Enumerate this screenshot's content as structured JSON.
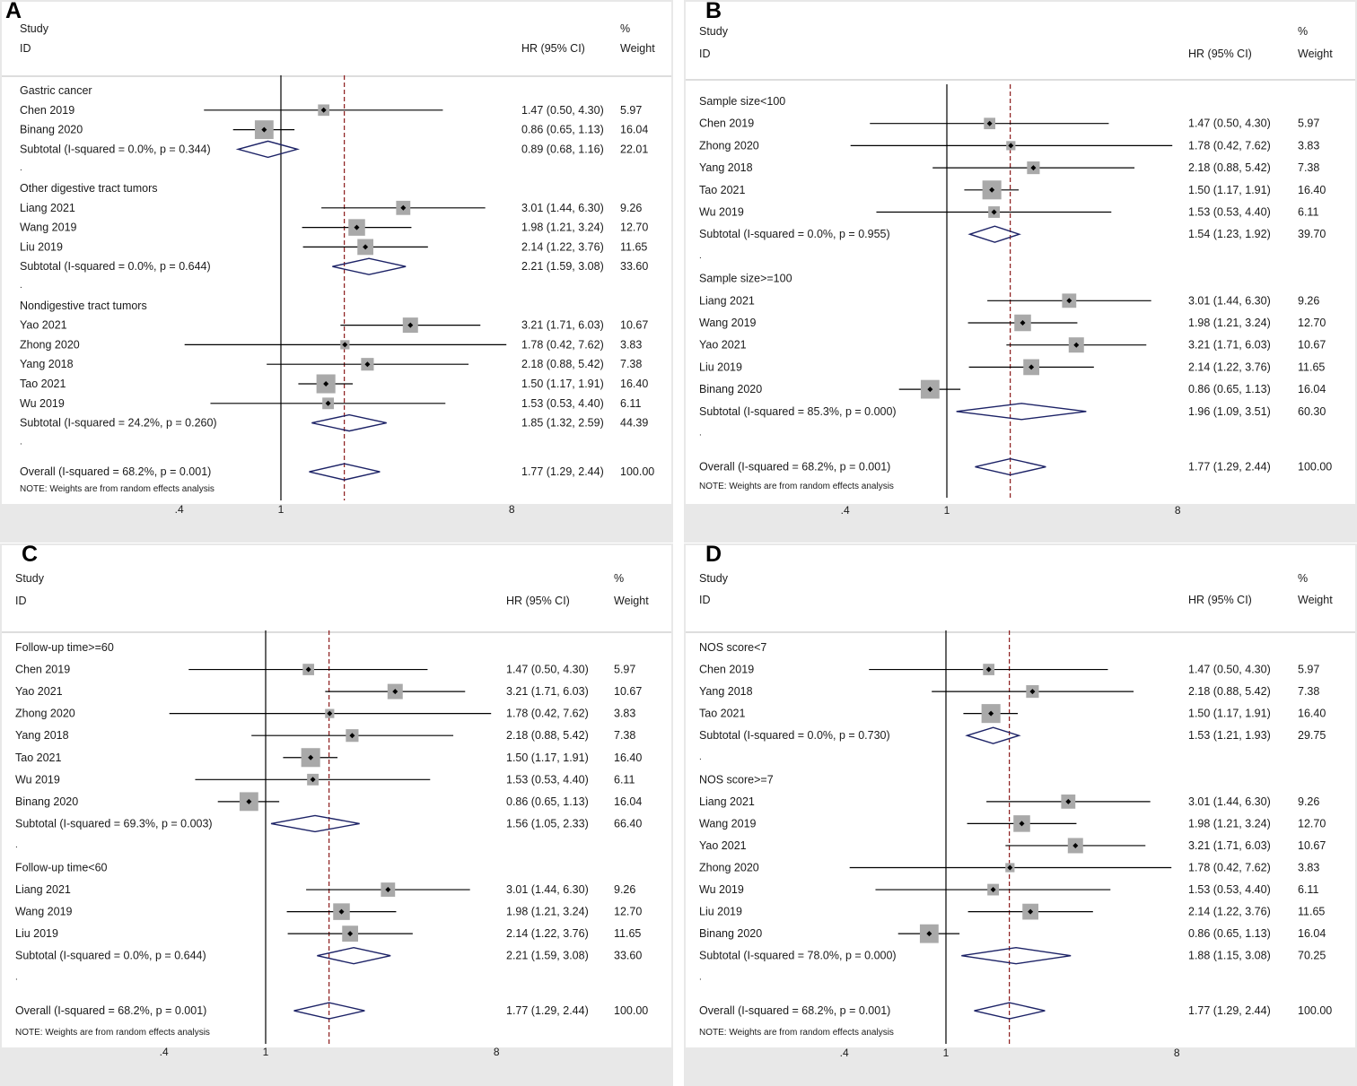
{
  "chart_data": [
    {
      "type": "forest",
      "panel_label": "A",
      "headers": {
        "study": "Study",
        "id": "ID",
        "ci": "HR (95% CI)",
        "pct": "%",
        "weight": "Weight"
      },
      "axis": {
        "scale": "log",
        "ticks": [
          0.4,
          1,
          8
        ],
        "tick_labels": [
          ".4",
          "1",
          "8"
        ],
        "null_line": 1,
        "overall_line": 1.77
      },
      "note": "NOTE: Weights are from random effects analysis",
      "rows": [
        {
          "kind": "group",
          "label": "Gastric cancer"
        },
        {
          "kind": "study",
          "label": "Chen 2019",
          "hr": 1.47,
          "lo": 0.5,
          "hi": 4.3,
          "ci_text": "1.47 (0.50, 4.30)",
          "weight": "5.97"
        },
        {
          "kind": "study",
          "label": "Binang 2020",
          "hr": 0.86,
          "lo": 0.65,
          "hi": 1.13,
          "ci_text": "0.86 (0.65, 1.13)",
          "weight": "16.04"
        },
        {
          "kind": "subtotal",
          "label": "Subtotal  (I-squared = 0.0%, p = 0.344)",
          "hr": 0.89,
          "lo": 0.68,
          "hi": 1.16,
          "ci_text": "0.89 (0.68, 1.16)",
          "weight": "22.01"
        },
        {
          "kind": "dot",
          "label": "."
        },
        {
          "kind": "group",
          "label": "Other digestive tract tumors"
        },
        {
          "kind": "study",
          "label": "Liang 2021",
          "hr": 3.01,
          "lo": 1.44,
          "hi": 6.3,
          "ci_text": "3.01 (1.44, 6.30)",
          "weight": "9.26"
        },
        {
          "kind": "study",
          "label": "Wang 2019",
          "hr": 1.98,
          "lo": 1.21,
          "hi": 3.24,
          "ci_text": "1.98 (1.21, 3.24)",
          "weight": "12.70"
        },
        {
          "kind": "study",
          "label": "Liu 2019",
          "hr": 2.14,
          "lo": 1.22,
          "hi": 3.76,
          "ci_text": "2.14 (1.22, 3.76)",
          "weight": "11.65"
        },
        {
          "kind": "subtotal",
          "label": "Subtotal  (I-squared = 0.0%, p = 0.644)",
          "hr": 2.21,
          "lo": 1.59,
          "hi": 3.08,
          "ci_text": "2.21 (1.59, 3.08)",
          "weight": "33.60"
        },
        {
          "kind": "dot",
          "label": "."
        },
        {
          "kind": "group",
          "label": "Nondigestive tract tumors"
        },
        {
          "kind": "study",
          "label": "Yao 2021",
          "hr": 3.21,
          "lo": 1.71,
          "hi": 6.03,
          "ci_text": "3.21 (1.71, 6.03)",
          "weight": "10.67"
        },
        {
          "kind": "study",
          "label": "Zhong 2020",
          "hr": 1.78,
          "lo": 0.42,
          "hi": 7.62,
          "ci_text": "1.78 (0.42, 7.62)",
          "weight": "3.83"
        },
        {
          "kind": "study",
          "label": "Yang 2018",
          "hr": 2.18,
          "lo": 0.88,
          "hi": 5.42,
          "ci_text": "2.18 (0.88, 5.42)",
          "weight": "7.38"
        },
        {
          "kind": "study",
          "label": "Tao 2021",
          "hr": 1.5,
          "lo": 1.17,
          "hi": 1.91,
          "ci_text": "1.50 (1.17, 1.91)",
          "weight": "16.40"
        },
        {
          "kind": "study",
          "label": "Wu 2019",
          "hr": 1.53,
          "lo": 0.53,
          "hi": 4.4,
          "ci_text": "1.53 (0.53, 4.40)",
          "weight": "6.11"
        },
        {
          "kind": "subtotal",
          "label": "Subtotal  (I-squared = 24.2%, p = 0.260)",
          "hr": 1.85,
          "lo": 1.32,
          "hi": 2.59,
          "ci_text": "1.85 (1.32, 2.59)",
          "weight": "44.39"
        },
        {
          "kind": "dot",
          "label": "."
        },
        {
          "kind": "overall",
          "label": "Overall  (I-squared = 68.2%, p = 0.001)",
          "hr": 1.77,
          "lo": 1.29,
          "hi": 2.44,
          "ci_text": "1.77 (1.29, 2.44)",
          "weight": "100.00"
        }
      ]
    },
    {
      "type": "forest",
      "panel_label": "B",
      "headers": {
        "study": "Study",
        "id": "ID",
        "ci": "HR (95% CI)",
        "pct": "%",
        "weight": "Weight"
      },
      "axis": {
        "scale": "log",
        "ticks": [
          0.4,
          1,
          8
        ],
        "tick_labels": [
          ".4",
          "1",
          "8"
        ],
        "null_line": 1,
        "overall_line": 1.77
      },
      "note": "NOTE: Weights are from random effects analysis",
      "rows": [
        {
          "kind": "group",
          "label": "Sample size<100"
        },
        {
          "kind": "study",
          "label": "Chen 2019",
          "hr": 1.47,
          "lo": 0.5,
          "hi": 4.3,
          "ci_text": "1.47 (0.50, 4.30)",
          "weight": "5.97"
        },
        {
          "kind": "study",
          "label": "Zhong 2020",
          "hr": 1.78,
          "lo": 0.42,
          "hi": 7.62,
          "ci_text": "1.78 (0.42, 7.62)",
          "weight": "3.83"
        },
        {
          "kind": "study",
          "label": "Yang 2018",
          "hr": 2.18,
          "lo": 0.88,
          "hi": 5.42,
          "ci_text": "2.18 (0.88, 5.42)",
          "weight": "7.38"
        },
        {
          "kind": "study",
          "label": "Tao 2021",
          "hr": 1.5,
          "lo": 1.17,
          "hi": 1.91,
          "ci_text": "1.50 (1.17, 1.91)",
          "weight": "16.40"
        },
        {
          "kind": "study",
          "label": "Wu 2019",
          "hr": 1.53,
          "lo": 0.53,
          "hi": 4.4,
          "ci_text": "1.53 (0.53, 4.40)",
          "weight": "6.11"
        },
        {
          "kind": "subtotal",
          "label": "Subtotal  (I-squared = 0.0%, p = 0.955)",
          "hr": 1.54,
          "lo": 1.23,
          "hi": 1.92,
          "ci_text": "1.54 (1.23, 1.92)",
          "weight": "39.70"
        },
        {
          "kind": "dot",
          "label": "."
        },
        {
          "kind": "group",
          "label": "Sample size>=100"
        },
        {
          "kind": "study",
          "label": "Liang 2021",
          "hr": 3.01,
          "lo": 1.44,
          "hi": 6.3,
          "ci_text": "3.01 (1.44, 6.30)",
          "weight": "9.26"
        },
        {
          "kind": "study",
          "label": "Wang 2019",
          "hr": 1.98,
          "lo": 1.21,
          "hi": 3.24,
          "ci_text": "1.98 (1.21, 3.24)",
          "weight": "12.70"
        },
        {
          "kind": "study",
          "label": "Yao 2021",
          "hr": 3.21,
          "lo": 1.71,
          "hi": 6.03,
          "ci_text": "3.21 (1.71, 6.03)",
          "weight": "10.67"
        },
        {
          "kind": "study",
          "label": "Liu 2019",
          "hr": 2.14,
          "lo": 1.22,
          "hi": 3.76,
          "ci_text": "2.14 (1.22, 3.76)",
          "weight": "11.65"
        },
        {
          "kind": "study",
          "label": "Binang 2020",
          "hr": 0.86,
          "lo": 0.65,
          "hi": 1.13,
          "ci_text": "0.86 (0.65, 1.13)",
          "weight": "16.04"
        },
        {
          "kind": "subtotal",
          "label": "Subtotal  (I-squared = 85.3%, p = 0.000)",
          "hr": 1.96,
          "lo": 1.09,
          "hi": 3.51,
          "ci_text": "1.96 (1.09, 3.51)",
          "weight": "60.30"
        },
        {
          "kind": "dot",
          "label": "."
        },
        {
          "kind": "overall",
          "label": "Overall  (I-squared = 68.2%, p = 0.001)",
          "hr": 1.77,
          "lo": 1.29,
          "hi": 2.44,
          "ci_text": "1.77 (1.29, 2.44)",
          "weight": "100.00"
        }
      ]
    },
    {
      "type": "forest",
      "panel_label": "C",
      "headers": {
        "study": "Study",
        "id": "ID",
        "ci": "HR (95% CI)",
        "pct": "%",
        "weight": "Weight"
      },
      "axis": {
        "scale": "log",
        "ticks": [
          0.4,
          1,
          8
        ],
        "tick_labels": [
          ".4",
          "1",
          "8"
        ],
        "null_line": 1,
        "overall_line": 1.77
      },
      "note": "NOTE: Weights are from random effects analysis",
      "rows": [
        {
          "kind": "group",
          "label": "Follow-up time>=60"
        },
        {
          "kind": "study",
          "label": "Chen 2019",
          "hr": 1.47,
          "lo": 0.5,
          "hi": 4.3,
          "ci_text": "1.47 (0.50, 4.30)",
          "weight": "5.97"
        },
        {
          "kind": "study",
          "label": "Yao 2021",
          "hr": 3.21,
          "lo": 1.71,
          "hi": 6.03,
          "ci_text": "3.21 (1.71, 6.03)",
          "weight": "10.67"
        },
        {
          "kind": "study",
          "label": "Zhong 2020",
          "hr": 1.78,
          "lo": 0.42,
          "hi": 7.62,
          "ci_text": "1.78 (0.42, 7.62)",
          "weight": "3.83"
        },
        {
          "kind": "study",
          "label": "Yang 2018",
          "hr": 2.18,
          "lo": 0.88,
          "hi": 5.42,
          "ci_text": "2.18 (0.88, 5.42)",
          "weight": "7.38"
        },
        {
          "kind": "study",
          "label": "Tao 2021",
          "hr": 1.5,
          "lo": 1.17,
          "hi": 1.91,
          "ci_text": "1.50 (1.17, 1.91)",
          "weight": "16.40"
        },
        {
          "kind": "study",
          "label": "Wu 2019",
          "hr": 1.53,
          "lo": 0.53,
          "hi": 4.4,
          "ci_text": "1.53 (0.53, 4.40)",
          "weight": "6.11"
        },
        {
          "kind": "study",
          "label": "Binang 2020",
          "hr": 0.86,
          "lo": 0.65,
          "hi": 1.13,
          "ci_text": "0.86 (0.65, 1.13)",
          "weight": "16.04"
        },
        {
          "kind": "subtotal",
          "label": "Subtotal  (I-squared = 69.3%, p = 0.003)",
          "hr": 1.56,
          "lo": 1.05,
          "hi": 2.33,
          "ci_text": "1.56 (1.05, 2.33)",
          "weight": "66.40"
        },
        {
          "kind": "dot",
          "label": "."
        },
        {
          "kind": "group",
          "label": "Follow-up time<60"
        },
        {
          "kind": "study",
          "label": "Liang 2021",
          "hr": 3.01,
          "lo": 1.44,
          "hi": 6.3,
          "ci_text": "3.01 (1.44, 6.30)",
          "weight": "9.26"
        },
        {
          "kind": "study",
          "label": "Wang 2019",
          "hr": 1.98,
          "lo": 1.21,
          "hi": 3.24,
          "ci_text": "1.98 (1.21, 3.24)",
          "weight": "12.70"
        },
        {
          "kind": "study",
          "label": "Liu 2019",
          "hr": 2.14,
          "lo": 1.22,
          "hi": 3.76,
          "ci_text": "2.14 (1.22, 3.76)",
          "weight": "11.65"
        },
        {
          "kind": "subtotal",
          "label": "Subtotal  (I-squared = 0.0%, p = 0.644)",
          "hr": 2.21,
          "lo": 1.59,
          "hi": 3.08,
          "ci_text": "2.21 (1.59, 3.08)",
          "weight": "33.60"
        },
        {
          "kind": "dot",
          "label": "."
        },
        {
          "kind": "overall",
          "label": "Overall  (I-squared = 68.2%, p = 0.001)",
          "hr": 1.77,
          "lo": 1.29,
          "hi": 2.44,
          "ci_text": "1.77 (1.29, 2.44)",
          "weight": "100.00"
        }
      ]
    },
    {
      "type": "forest",
      "panel_label": "D",
      "headers": {
        "study": "Study",
        "id": "ID",
        "ci": "HR (95% CI)",
        "pct": "%",
        "weight": "Weight"
      },
      "axis": {
        "scale": "log",
        "ticks": [
          0.4,
          1,
          8
        ],
        "tick_labels": [
          ".4",
          "1",
          "8"
        ],
        "null_line": 1,
        "overall_line": 1.77
      },
      "note": "NOTE: Weights are from random effects analysis",
      "rows": [
        {
          "kind": "group",
          "label": "NOS score<7"
        },
        {
          "kind": "study",
          "label": "Chen 2019",
          "hr": 1.47,
          "lo": 0.5,
          "hi": 4.3,
          "ci_text": "1.47 (0.50, 4.30)",
          "weight": "5.97"
        },
        {
          "kind": "study",
          "label": "Yang 2018",
          "hr": 2.18,
          "lo": 0.88,
          "hi": 5.42,
          "ci_text": "2.18 (0.88, 5.42)",
          "weight": "7.38"
        },
        {
          "kind": "study",
          "label": "Tao 2021",
          "hr": 1.5,
          "lo": 1.17,
          "hi": 1.91,
          "ci_text": "1.50 (1.17, 1.91)",
          "weight": "16.40"
        },
        {
          "kind": "subtotal",
          "label": "Subtotal  (I-squared = 0.0%, p = 0.730)",
          "hr": 1.53,
          "lo": 1.21,
          "hi": 1.93,
          "ci_text": "1.53 (1.21, 1.93)",
          "weight": "29.75"
        },
        {
          "kind": "dot",
          "label": "."
        },
        {
          "kind": "group",
          "label": "NOS score>=7"
        },
        {
          "kind": "study",
          "label": "Liang 2021",
          "hr": 3.01,
          "lo": 1.44,
          "hi": 6.3,
          "ci_text": "3.01 (1.44, 6.30)",
          "weight": "9.26"
        },
        {
          "kind": "study",
          "label": "Wang 2019",
          "hr": 1.98,
          "lo": 1.21,
          "hi": 3.24,
          "ci_text": "1.98 (1.21, 3.24)",
          "weight": "12.70"
        },
        {
          "kind": "study",
          "label": "Yao 2021",
          "hr": 3.21,
          "lo": 1.71,
          "hi": 6.03,
          "ci_text": "3.21 (1.71, 6.03)",
          "weight": "10.67"
        },
        {
          "kind": "study",
          "label": "Zhong 2020",
          "hr": 1.78,
          "lo": 0.42,
          "hi": 7.62,
          "ci_text": "1.78 (0.42, 7.62)",
          "weight": "3.83"
        },
        {
          "kind": "study",
          "label": "Wu 2019",
          "hr": 1.53,
          "lo": 0.53,
          "hi": 4.4,
          "ci_text": "1.53 (0.53, 4.40)",
          "weight": "6.11"
        },
        {
          "kind": "study",
          "label": "Liu 2019",
          "hr": 2.14,
          "lo": 1.22,
          "hi": 3.76,
          "ci_text": "2.14 (1.22, 3.76)",
          "weight": "11.65"
        },
        {
          "kind": "study",
          "label": "Binang 2020",
          "hr": 0.86,
          "lo": 0.65,
          "hi": 1.13,
          "ci_text": "0.86 (0.65, 1.13)",
          "weight": "16.04"
        },
        {
          "kind": "subtotal",
          "label": "Subtotal  (I-squared = 78.0%, p = 0.000)",
          "hr": 1.88,
          "lo": 1.15,
          "hi": 3.08,
          "ci_text": "1.88 (1.15, 3.08)",
          "weight": "70.25"
        },
        {
          "kind": "dot",
          "label": "."
        },
        {
          "kind": "overall",
          "label": "Overall  (I-squared = 68.2%, p = 0.001)",
          "hr": 1.77,
          "lo": 1.29,
          "hi": 2.44,
          "ci_text": "1.77 (1.29, 2.44)",
          "weight": "100.00"
        }
      ]
    }
  ],
  "colors": {
    "diamond": "#1c2266",
    "ref_line": "#8b1a1a",
    "box": "#a9a9a9",
    "axis": "#000000"
  }
}
